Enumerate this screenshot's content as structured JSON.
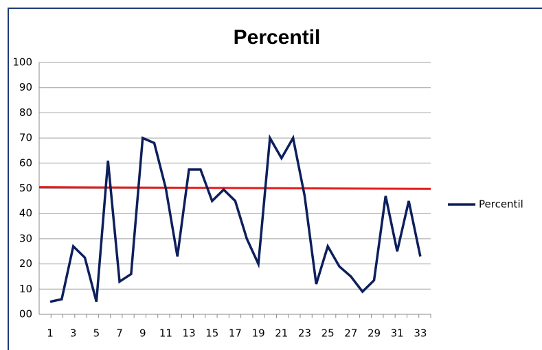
{
  "chart_data": {
    "type": "line",
    "title": "Percentil",
    "categories": [
      "1",
      null,
      "3",
      null,
      "5",
      null,
      "7",
      null,
      "9",
      null,
      "11",
      null,
      "13",
      null,
      "15",
      null,
      "17",
      null,
      "19",
      null,
      "21",
      null,
      "23",
      null,
      "25",
      null,
      "27",
      null,
      "29",
      null,
      "31",
      null,
      "33"
    ],
    "series": [
      {
        "name": "Percentil",
        "color": "#0d1f5c",
        "values": [
          5,
          6,
          27,
          22.5,
          5,
          61,
          13,
          16,
          70,
          68,
          50,
          23,
          57.5,
          57.5,
          45,
          49.5,
          45,
          30,
          20,
          70,
          62,
          70,
          47,
          12,
          27,
          19,
          15,
          9,
          13.5,
          47,
          25,
          45,
          23
        ]
      }
    ],
    "reference_line": {
      "start": 50.5,
      "end": 49.8,
      "color": "#e61a1a"
    },
    "ylim": [
      0,
      100
    ],
    "yticks": [
      {
        "value": 0,
        "label": "00"
      },
      10,
      20,
      30,
      40,
      50,
      60,
      70,
      80,
      90,
      100
    ],
    "grid": true,
    "legend": "right"
  }
}
